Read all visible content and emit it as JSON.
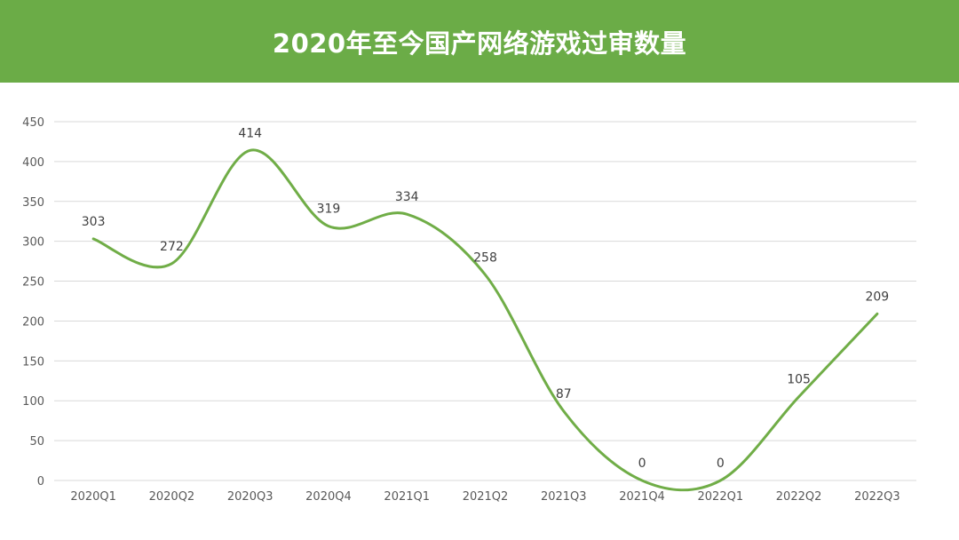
{
  "colors": {
    "header_bg": "#6bac47",
    "line": "#70ad47",
    "grid": "#d9d9d9",
    "axis_text": "#595959",
    "label_text": "#404040"
  },
  "chart_data": {
    "type": "line",
    "title": "2020年至今国产网络游戏过审数量",
    "categories": [
      "2020Q1",
      "2020Q2",
      "2020Q3",
      "2020Q4",
      "2021Q1",
      "2021Q2",
      "2021Q3",
      "2021Q4",
      "2022Q1",
      "2022Q2",
      "2022Q3"
    ],
    "series": [
      {
        "values": [
          303,
          272,
          414,
          319,
          334,
          258,
          87,
          0,
          0,
          105,
          209
        ]
      }
    ],
    "ylim": [
      0,
      450
    ],
    "yticks": [
      0,
      50,
      100,
      150,
      200,
      250,
      300,
      350,
      400,
      450
    ],
    "grid": true,
    "smooth": true,
    "data_labels": true,
    "legend": "none"
  }
}
